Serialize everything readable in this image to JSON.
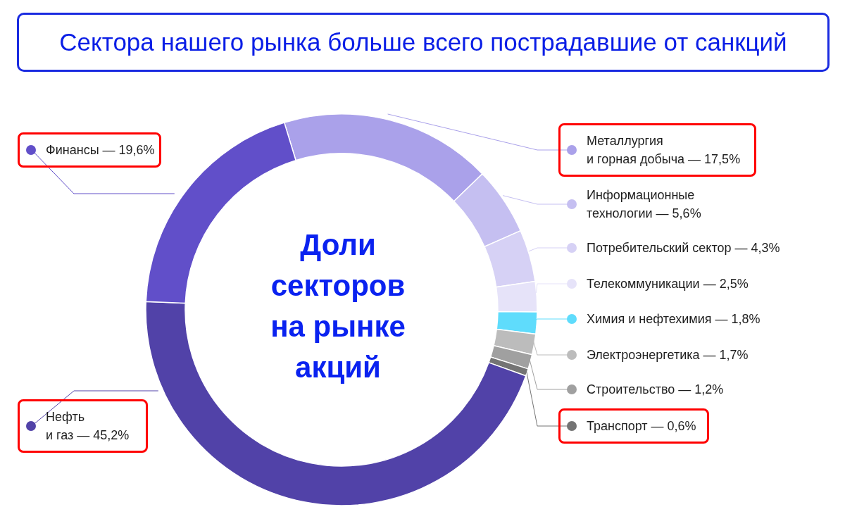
{
  "chart_data": {
    "type": "donut",
    "title": "Сектора нашего рынка больше всего пострадавшие от санкций",
    "annotations": [
      "Доли секторов на рынке акций"
    ],
    "categories": [
      "Металлургия и горная добыча",
      "Информационные технологии",
      "Потребительский сектор",
      "Телекоммуникации",
      "Химия и нефтехимия",
      "Электроэнергетика",
      "Строительство",
      "Транспорт",
      "Нефть и газ",
      "Финансы"
    ],
    "values": [
      17.5,
      5.6,
      4.3,
      2.5,
      1.8,
      1.7,
      1.2,
      0.6,
      45.2,
      19.6
    ],
    "value_labels": [
      "— 17,5%",
      "— 5,6%",
      "— 4,3%",
      "— 2,5%",
      "— 1,8%",
      "— 1,7%",
      "— 1,2%",
      "— 0,6%",
      "— 45,2%",
      "— 19,6%"
    ],
    "legend": "right",
    "colors": [
      "#aaa1ea",
      "#c5bff1",
      "#d6d1f5",
      "#e6e3f9",
      "#5fdcfc",
      "#bcbcbc",
      "#a0a0a0",
      "#747474",
      "#5142a8",
      "#614fc9"
    ]
  }
}
